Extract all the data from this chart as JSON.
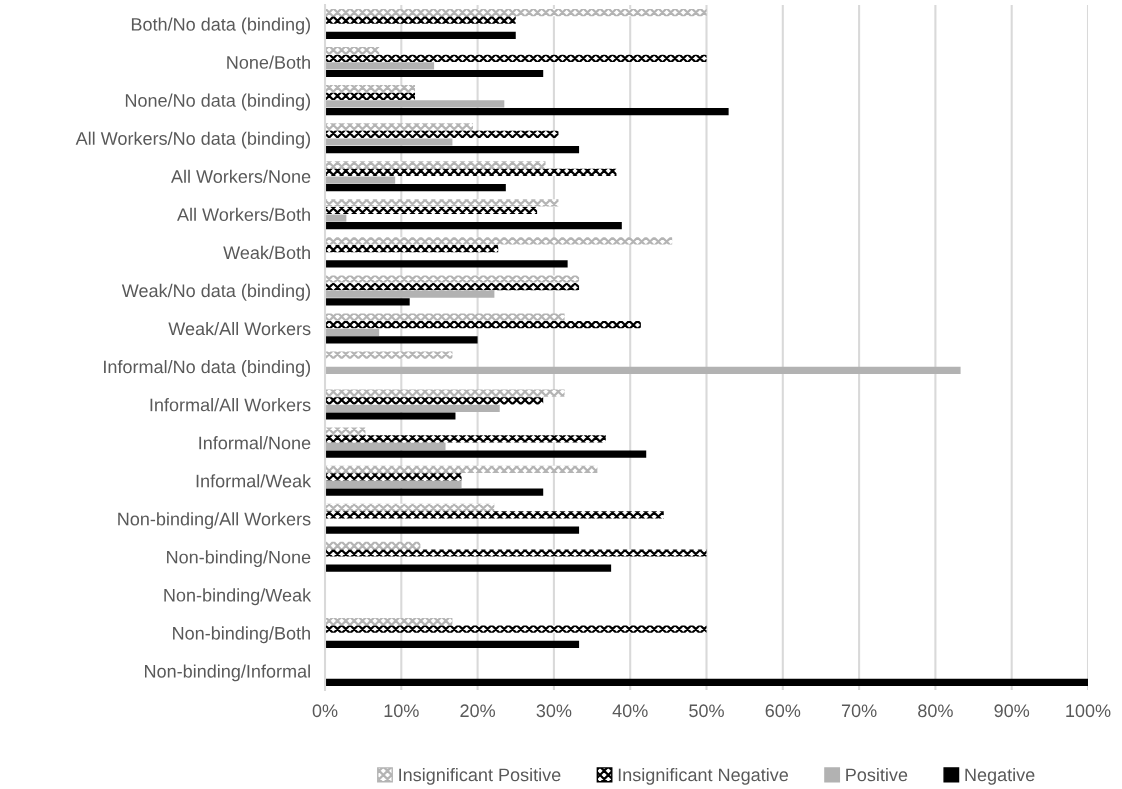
{
  "chart_data": {
    "type": "bar",
    "orientation": "horizontal",
    "categories": [
      "Both/No data (binding)",
      "None/Both",
      "None/No data (binding)",
      "All Workers/No data (binding)",
      "All Workers/None",
      "All Workers/Both",
      "Weak/Both",
      "Weak/No data (binding)",
      "Weak/All Workers",
      "Informal/No data (binding)",
      "Informal/All Workers",
      "Informal/None",
      "Informal/Weak",
      "Non-binding/All Workers",
      "Non-binding/None",
      "Non-binding/Weak",
      "Non-binding/Both",
      "Non-binding/Informal"
    ],
    "series": [
      {
        "name": "Insignificant Positive",
        "color": "#b4b4b4",
        "values": [
          50,
          7.1,
          11.8,
          19.4,
          28.9,
          30.6,
          45.5,
          33.3,
          31.4,
          16.7,
          31.4,
          5.3,
          35.7,
          22.2,
          12.5,
          0,
          16.7,
          0
        ]
      },
      {
        "name": "Insignificant Negative",
        "color": "#000000",
        "values": [
          25,
          50,
          11.8,
          30.6,
          38.2,
          27.8,
          22.7,
          33.3,
          41.4,
          0,
          28.6,
          36.8,
          17.9,
          44.4,
          50,
          0,
          50,
          0
        ]
      },
      {
        "name": "Positive",
        "color": "#b2b2b2",
        "values": [
          0,
          14.3,
          23.5,
          16.7,
          9.2,
          2.8,
          0,
          22.2,
          7.1,
          83.3,
          22.9,
          15.8,
          17.9,
          0,
          0,
          0,
          0,
          0
        ]
      },
      {
        "name": "Negative",
        "color": "#000000",
        "values": [
          25,
          28.6,
          52.9,
          33.3,
          23.7,
          38.9,
          31.8,
          11.1,
          20.0,
          0,
          17.1,
          42.1,
          28.6,
          33.3,
          37.5,
          0,
          33.3,
          100
        ]
      }
    ],
    "xlim": [
      0,
      100
    ],
    "xticks": [
      {
        "value": 0,
        "label": "0%"
      },
      {
        "value": 10,
        "label": "10%"
      },
      {
        "value": 20,
        "label": "20%"
      },
      {
        "value": 30,
        "label": "30%"
      },
      {
        "value": 40,
        "label": "40%"
      },
      {
        "value": 50,
        "label": "50%"
      },
      {
        "value": 60,
        "label": "60%"
      },
      {
        "value": 70,
        "label": "70%"
      },
      {
        "value": 80,
        "label": "80%"
      },
      {
        "value": 90,
        "label": "90%"
      },
      {
        "value": 100,
        "label": "100%"
      }
    ],
    "grid": "x",
    "legend": "bottom"
  }
}
